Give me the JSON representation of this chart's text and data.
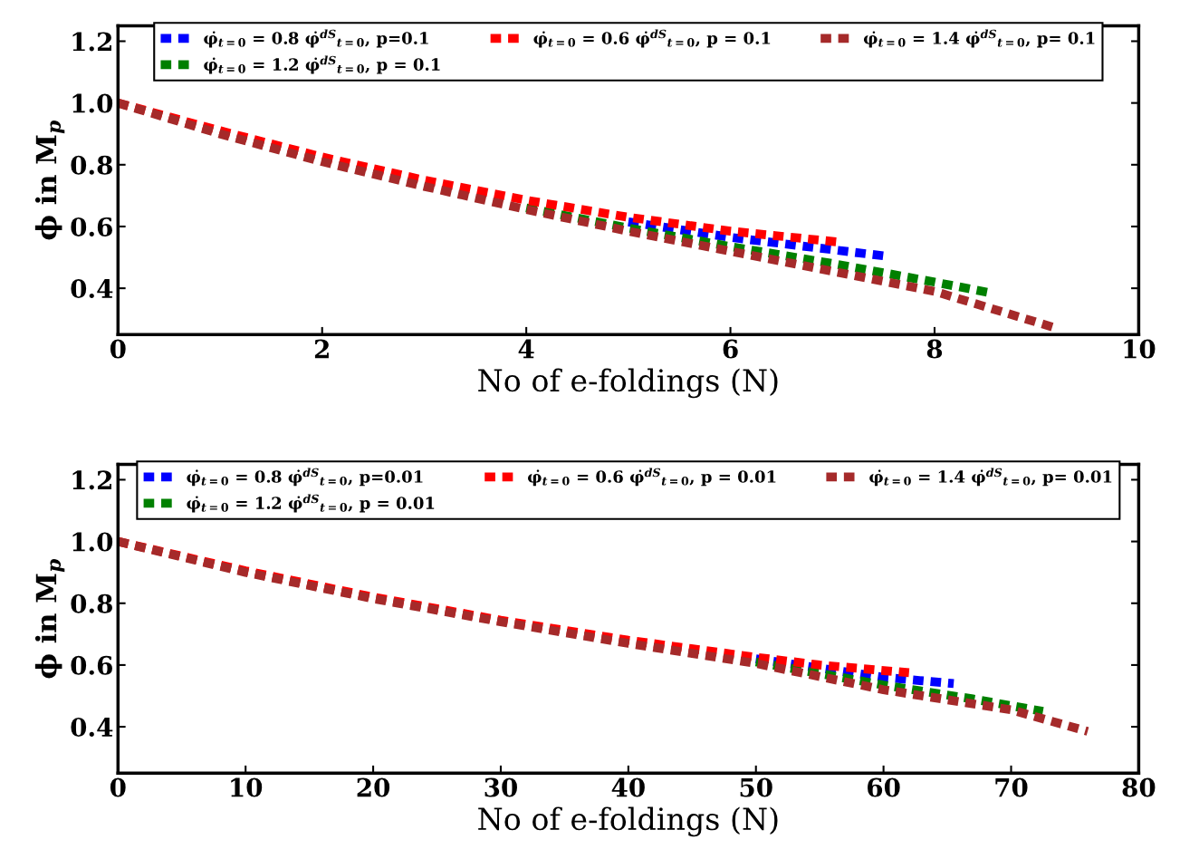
{
  "chart_data": [
    {
      "type": "line",
      "xlabel": "No of e-foldings (N)",
      "ylabel": "ϕ in M$_{p}$",
      "xlim": [
        0,
        10
      ],
      "ylim": [
        0.25,
        1.25
      ],
      "xticks": [
        0,
        2,
        4,
        6,
        8,
        10
      ],
      "yticks": [
        0.4,
        0.6,
        0.8,
        {
          "value": 1,
          "label": "1.0"
        },
        1.2
      ],
      "legend": "top",
      "line_style": "dashed",
      "grid": false,
      "series": [
        {
          "name": "φ̇$_{t=0}$ = 0.8 φ̇$^{dS}$$_{t=0}$, p=0.1",
          "color": "#0000ff",
          "x": [
            5,
            6,
            7,
            7.5
          ],
          "values": [
            0.615,
            0.565,
            0.525,
            0.505
          ]
        },
        {
          "name": "φ̇$_{t=0}$ = 1.2 φ̇$^{dS}$$_{t=0}$, p = 0.1",
          "color": "#008000",
          "x": [
            4,
            5,
            6,
            7,
            8,
            8.55
          ],
          "values": [
            0.66,
            0.595,
            0.535,
            0.48,
            0.42,
            0.385
          ]
        },
        {
          "name": "φ̇$_{t=0}$ = 0.6 φ̇$^{dS}$$_{t=0}$, p = 0.1",
          "color": "#ff0000",
          "x": [
            0,
            1,
            2,
            3,
            4,
            5,
            6,
            7.05
          ],
          "values": [
            1.0,
            0.91,
            0.825,
            0.75,
            0.685,
            0.63,
            0.585,
            0.55
          ]
        },
        {
          "name": "φ̇$_{t=0}$ = 1.4 φ̇$^{dS}$$_{t=0}$, p= 0.1",
          "color": "#a52a2a",
          "x": [
            0,
            1,
            2,
            3,
            4,
            5,
            6,
            7,
            8,
            9.2
          ],
          "values": [
            1.0,
            0.9,
            0.81,
            0.73,
            0.655,
            0.585,
            0.52,
            0.455,
            0.39,
            0.27
          ]
        }
      ]
    },
    {
      "type": "line",
      "xlabel": "No of e-foldings (N)",
      "ylabel": "ϕ in M$_{p}$",
      "xlim": [
        0,
        80
      ],
      "ylim": [
        0.25,
        1.25
      ],
      "xticks": [
        0,
        10,
        20,
        30,
        40,
        50,
        60,
        70,
        80
      ],
      "yticks": [
        0.4,
        0.6,
        0.8,
        {
          "value": 1,
          "label": "1.0"
        },
        1.2
      ],
      "legend": "top",
      "line_style": "dashed",
      "grid": false,
      "series": [
        {
          "name": "φ̇$_{t=0}$ = 0.8 φ̇$^{dS}$$_{t=0}$, p=0.01",
          "color": "#0000ff",
          "x": [
            50,
            60,
            65.5
          ],
          "values": [
            0.62,
            0.56,
            0.54
          ]
        },
        {
          "name": "φ̇$_{t=0}$ = 1.2 φ̇$^{dS}$$_{t=0}$, p = 0.01",
          "color": "#008000",
          "x": [
            50,
            60,
            67,
            72.5
          ],
          "values": [
            0.61,
            0.535,
            0.49,
            0.45
          ]
        },
        {
          "name": "φ̇$_{t=0}$ = 0.6 φ̇$^{dS}$$_{t=0}$, p = 0.01",
          "color": "#ff0000",
          "x": [
            0,
            10,
            20,
            30,
            40,
            50,
            55,
            62
          ],
          "values": [
            1.0,
            0.905,
            0.82,
            0.745,
            0.68,
            0.625,
            0.6,
            0.575
          ]
        },
        {
          "name": "φ̇$_{t=0}$ = 1.4 φ̇$^{dS}$$_{t=0}$, p= 0.01",
          "color": "#a52a2a",
          "x": [
            0,
            10,
            20,
            30,
            40,
            50,
            60,
            70,
            76
          ],
          "values": [
            1.0,
            0.9,
            0.815,
            0.74,
            0.67,
            0.605,
            0.52,
            0.455,
            0.385
          ]
        }
      ]
    }
  ]
}
